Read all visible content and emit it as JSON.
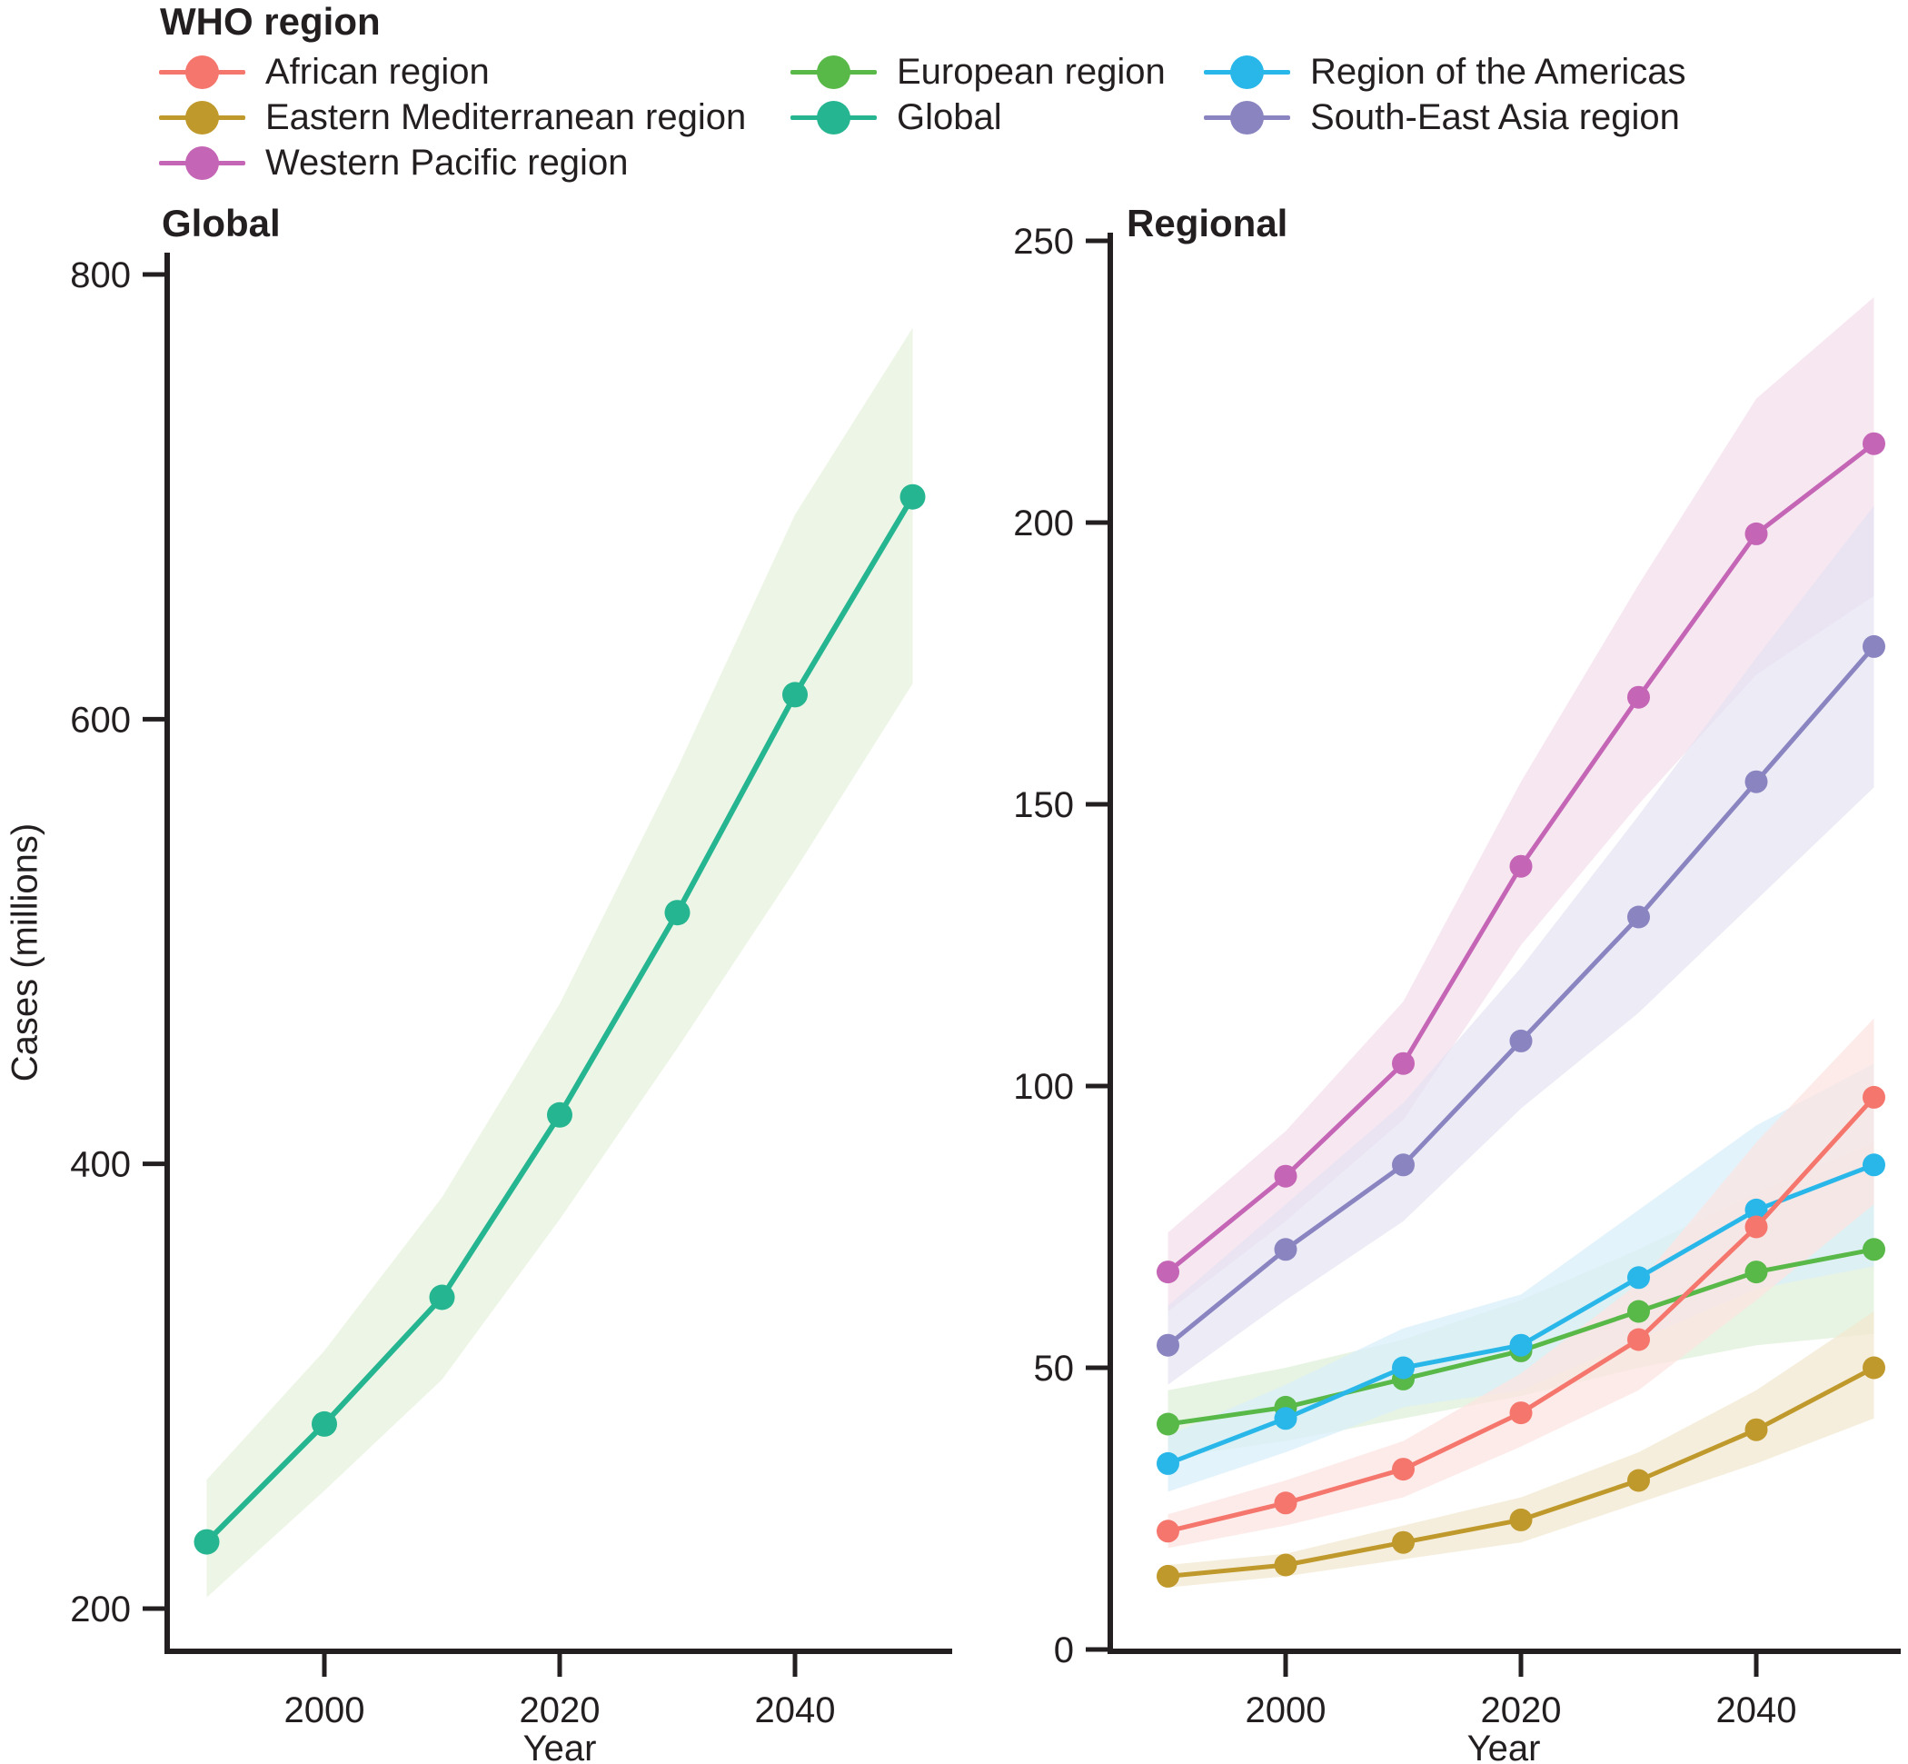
{
  "legend": {
    "title": "WHO region",
    "items": [
      {
        "label": "African region",
        "color": "#F5766D"
      },
      {
        "label": "European region",
        "color": "#58B848"
      },
      {
        "label": "Region of the Americas",
        "color": "#29B7E9"
      },
      {
        "label": "Eastern Mediterranean region",
        "color": "#BF992B"
      },
      {
        "label": "Global",
        "color": "#25B590"
      },
      {
        "label": "South-East Asia region",
        "color": "#8A85C1"
      },
      {
        "label": "Western Pacific region",
        "color": "#C465B5"
      }
    ]
  },
  "axis": {
    "y_label": "Cases (millions)",
    "x_label": "Year"
  },
  "chart_data": [
    {
      "type": "line",
      "title": "Global",
      "xlabel": "Year",
      "ylabel": "Cases (millions)",
      "x": [
        1990,
        2000,
        2010,
        2020,
        2030,
        2040,
        2050
      ],
      "xticks": [
        2000,
        2020,
        2040
      ],
      "yticks": [
        200,
        400,
        600,
        800
      ],
      "ylim": [
        180,
        800
      ],
      "grid": false,
      "legend_position": "top-left",
      "series": [
        {
          "name": "Global",
          "color": "#25B590",
          "band_color": "#E6F2DC",
          "values": [
            230,
            283,
            340,
            422,
            513,
            611,
            700
          ],
          "band_lower": [
            205,
            253,
            303,
            375,
            452,
            532,
            616
          ],
          "band_upper": [
            258,
            316,
            385,
            472,
            578,
            692,
            776
          ]
        }
      ]
    },
    {
      "type": "line",
      "title": "Regional",
      "xlabel": "Year",
      "ylabel": "Cases (millions)",
      "x": [
        1990,
        2000,
        2010,
        2020,
        2030,
        2040,
        2050
      ],
      "xticks": [
        2000,
        2020,
        2040
      ],
      "yticks": [
        0,
        50,
        100,
        150,
        200,
        250
      ],
      "ylim": [
        0,
        250
      ],
      "grid": false,
      "legend_position": "top-left",
      "series": [
        {
          "name": "Western Pacific region",
          "color": "#C465B5",
          "band_color": "#F4DEEC",
          "values": [
            67,
            84,
            104,
            139,
            169,
            198,
            214
          ],
          "band_lower": [
            60,
            76,
            94,
            125,
            150,
            173,
            187
          ],
          "band_upper": [
            74,
            92,
            115,
            154,
            189,
            222,
            240
          ]
        },
        {
          "name": "South-East Asia region",
          "color": "#8A85C1",
          "band_color": "#E5E3F2",
          "values": [
            54,
            71,
            86,
            108,
            130,
            154,
            178
          ],
          "band_lower": [
            47,
            62,
            76,
            96,
            113,
            133,
            153
          ],
          "band_upper": [
            61,
            79,
            97,
            121,
            148,
            176,
            203
          ]
        },
        {
          "name": "European region",
          "color": "#58B848",
          "band_color": "#DFF0D8",
          "values": [
            40,
            43,
            48,
            53,
            60,
            67,
            71
          ],
          "band_lower": [
            34,
            37,
            41,
            45,
            50,
            54,
            56
          ],
          "band_upper": [
            46,
            50,
            55,
            62,
            71,
            81,
            90
          ]
        },
        {
          "name": "Region of the Americas",
          "color": "#29B7E9",
          "band_color": "#D8EFFA",
          "values": [
            33,
            41,
            50,
            54,
            66,
            78,
            86
          ],
          "band_lower": [
            28,
            35,
            43,
            46,
            55,
            64,
            68
          ],
          "band_upper": [
            38,
            47,
            57,
            63,
            78,
            93,
            104
          ]
        },
        {
          "name": "African region",
          "color": "#F5766D",
          "band_color": "#FCE3E0",
          "values": [
            21,
            26,
            32,
            42,
            55,
            75,
            98
          ],
          "band_lower": [
            18,
            22,
            27,
            36,
            46,
            62,
            79
          ],
          "band_upper": [
            24,
            30,
            37,
            49,
            65,
            90,
            112
          ]
        },
        {
          "name": "Eastern Mediterranean region",
          "color": "#BF992B",
          "band_color": "#F1E8CF",
          "values": [
            13,
            15,
            19,
            23,
            30,
            39,
            50
          ],
          "band_lower": [
            11,
            13,
            16,
            19,
            26,
            33,
            41
          ],
          "band_upper": [
            15,
            17,
            22,
            27,
            35,
            46,
            60
          ]
        }
      ]
    }
  ]
}
